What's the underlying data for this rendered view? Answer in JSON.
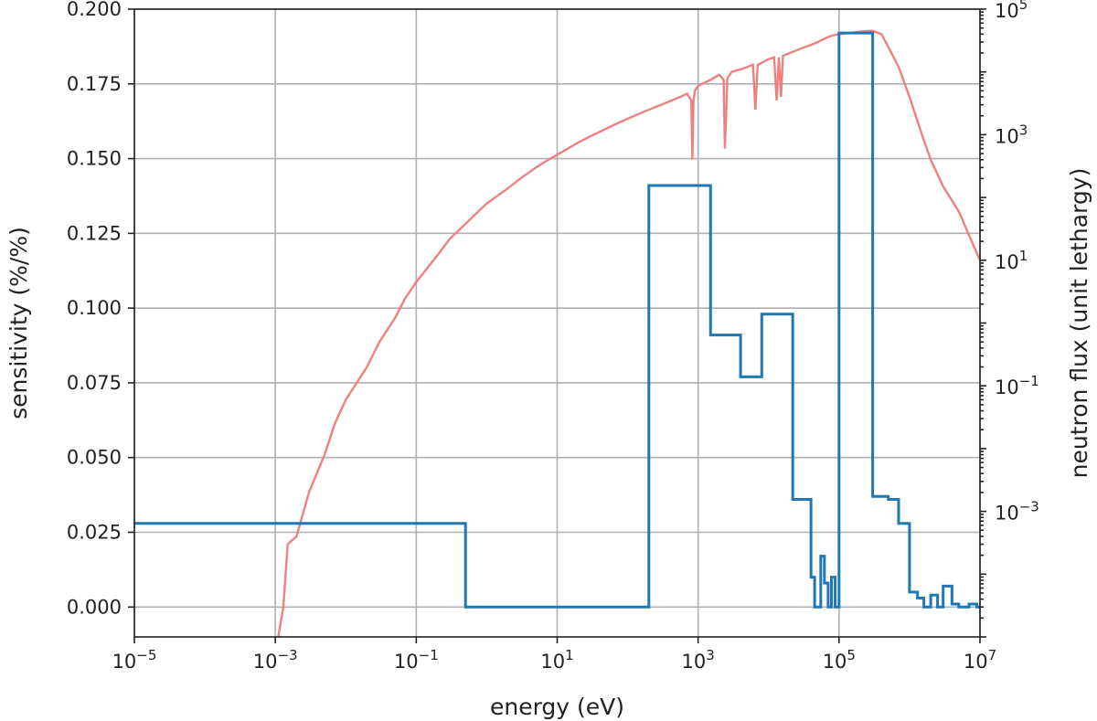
{
  "chart_data": {
    "type": "line",
    "xlabel": "energy (eV)",
    "ylabel": "sensitivity (%/%)",
    "y2label": "neutron flux (unit lethargy)",
    "x_scale": "log",
    "xlim": [
      1e-05,
      10000000
    ],
    "ylim": [
      -0.01,
      0.2
    ],
    "y2_scale": "log",
    "y2lim": [
      1e-05,
      100000
    ],
    "grid": true,
    "x_ticks": [
      {
        "value": 1e-05,
        "label": "10",
        "exp": "−5"
      },
      {
        "value": 0.001,
        "label": "10",
        "exp": "−3"
      },
      {
        "value": 0.1,
        "label": "10",
        "exp": "−1"
      },
      {
        "value": 10,
        "label": "10",
        "exp": "1"
      },
      {
        "value": 1000,
        "label": "10",
        "exp": "3"
      },
      {
        "value": 100000,
        "label": "10",
        "exp": "5"
      },
      {
        "value": 10000000,
        "label": "10",
        "exp": "7"
      }
    ],
    "y_ticks": [
      {
        "value": 0.0,
        "label": "0.000"
      },
      {
        "value": 0.025,
        "label": "0.025"
      },
      {
        "value": 0.05,
        "label": "0.050"
      },
      {
        "value": 0.075,
        "label": "0.075"
      },
      {
        "value": 0.1,
        "label": "0.100"
      },
      {
        "value": 0.125,
        "label": "0.125"
      },
      {
        "value": 0.15,
        "label": "0.150"
      },
      {
        "value": 0.175,
        "label": "0.175"
      },
      {
        "value": 0.2,
        "label": "0.200"
      }
    ],
    "y2_ticks": [
      {
        "value": 0.001,
        "label": "10",
        "exp": "−3"
      },
      {
        "value": 0.1,
        "label": "10",
        "exp": "−1"
      },
      {
        "value": 10,
        "label": "10",
        "exp": "1"
      },
      {
        "value": 1000,
        "label": "10",
        "exp": "3"
      },
      {
        "value": 100000,
        "label": "10",
        "exp": "5"
      }
    ],
    "series": [
      {
        "axis": "left",
        "color": "#1f77b4",
        "drawstyle": "steps",
        "x": [
          1e-05,
          0.5,
          0.5,
          200,
          200,
          1500,
          1500,
          4000,
          4000,
          8000,
          8000,
          22000,
          22000,
          40000,
          40000,
          45000,
          45000,
          55000,
          55000,
          62000,
          62000,
          70000,
          70000,
          78000,
          78000,
          88000,
          88000,
          100000,
          100000,
          300000,
          300000,
          500000,
          500000,
          700000,
          700000,
          1000000,
          1000000,
          1300000,
          1300000,
          1600000,
          1600000,
          2000000,
          2000000,
          2500000,
          2500000,
          3000000,
          3000000,
          4000000,
          4000000,
          5000000,
          5000000,
          7000000,
          7000000,
          9000000,
          9000000,
          10000000
        ],
        "y": [
          0.028,
          0.028,
          0.0,
          0.0,
          0.141,
          0.141,
          0.091,
          0.091,
          0.077,
          0.077,
          0.098,
          0.098,
          0.036,
          0.036,
          0.01,
          0.01,
          0.0,
          0.0,
          0.017,
          0.017,
          0.008,
          0.008,
          0.0,
          0.0,
          0.01,
          0.01,
          0.0,
          0.0,
          0.192,
          0.192,
          0.037,
          0.037,
          0.036,
          0.036,
          0.028,
          0.028,
          0.005,
          0.005,
          0.003,
          0.003,
          0.0,
          0.0,
          0.004,
          0.004,
          0.0,
          0.0,
          0.007,
          0.007,
          0.001,
          0.001,
          0.0,
          0.0,
          0.001,
          0.001,
          0.0,
          0.0
        ]
      },
      {
        "axis": "right",
        "color": "#f08080",
        "drawstyle": "line",
        "x": [
          0.0011,
          0.0013,
          0.0015,
          0.002,
          0.003,
          0.005,
          0.007,
          0.01,
          0.02,
          0.03,
          0.05,
          0.07,
          0.1,
          0.2,
          0.3,
          0.5,
          0.7,
          1,
          2,
          3,
          5,
          7,
          10,
          20,
          30,
          50,
          70,
          100,
          200,
          300,
          500,
          700,
          800,
          830,
          860,
          900,
          1000,
          1500,
          2000,
          2300,
          2400,
          2600,
          3000,
          4000,
          5000,
          6000,
          6500,
          7000,
          8000,
          10000,
          12000,
          13000,
          14000,
          15000,
          16000,
          20000,
          25000,
          30000,
          40000,
          50000,
          60000,
          70000,
          80000,
          100000,
          150000,
          200000,
          250000,
          300000,
          400000,
          500000,
          700000,
          1000000,
          1500000,
          2000000,
          3000000,
          5000000,
          7000000,
          10000000
        ],
        "y": [
          1e-05,
          3e-05,
          0.0003,
          0.0004,
          0.002,
          0.008,
          0.025,
          0.06,
          0.2,
          0.5,
          1.2,
          2.5,
          4.5,
          12,
          22,
          38,
          55,
          80,
          140,
          200,
          300,
          380,
          480,
          750,
          950,
          1250,
          1500,
          1800,
          2500,
          3000,
          3800,
          4500,
          3500,
          400,
          3500,
          5000,
          6000,
          7500,
          9000,
          7500,
          600,
          8000,
          10000,
          11000,
          12000,
          13000,
          2500,
          13000,
          14000,
          16000,
          17000,
          3500,
          17000,
          4000,
          18000,
          20000,
          22000,
          24000,
          27000,
          30000,
          33000,
          36000,
          38000,
          40000,
          42000,
          44000,
          45000,
          45000,
          40000,
          25000,
          12000,
          4000,
          1000,
          400,
          150,
          60,
          25,
          10
        ]
      }
    ]
  }
}
